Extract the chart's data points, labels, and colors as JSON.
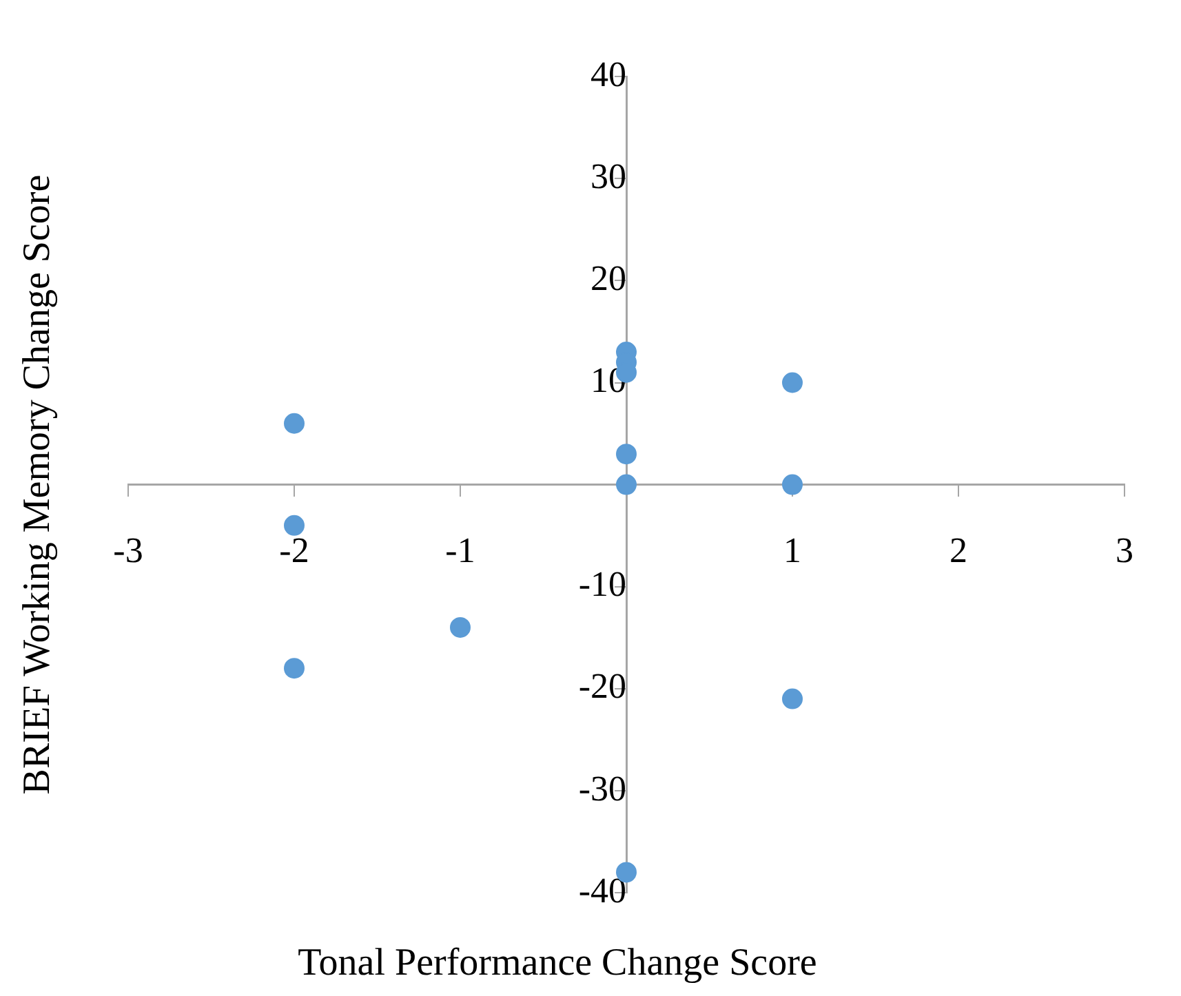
{
  "chart_data": {
    "type": "scatter",
    "xlabel": "Tonal Performance Change Score",
    "ylabel": "BRIEF Working Memory Change Score",
    "x": [
      -2,
      -2,
      -2,
      -1,
      0,
      0,
      0,
      0,
      0,
      0,
      1,
      1,
      1
    ],
    "series": [
      {
        "color": "#5b9bd5",
        "values": [
          6,
          -4,
          -18,
          -14,
          13,
          12,
          11,
          3,
          0,
          -38,
          10,
          0,
          -21
        ]
      }
    ],
    "xlim": [
      -3,
      3
    ],
    "xticks": [
      -3,
      -2,
      -1,
      1,
      2,
      3
    ],
    "ylim": [
      -40,
      40
    ],
    "yticks": [
      -40,
      -30,
      -20,
      -10,
      {
        "value": 0,
        "label": null
      },
      10,
      20,
      30,
      40
    ],
    "grid": false,
    "legend": false,
    "marker": "circle"
  }
}
